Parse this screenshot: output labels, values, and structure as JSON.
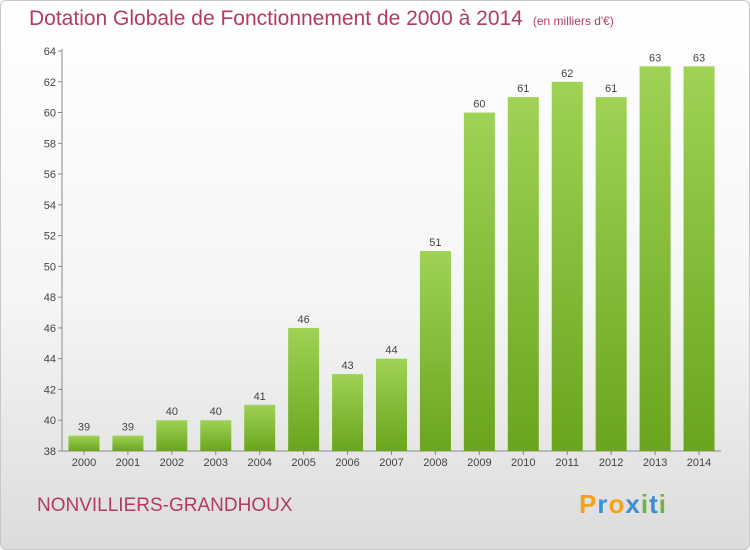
{
  "header": {
    "title": "Dotation Globale de Fonctionnement de 2000 à 2014",
    "unit": "(en milliers d'€)"
  },
  "footer": {
    "commune": "NONVILLIERS-GRANDHOUX",
    "logo_text": "Proxiti"
  },
  "chart_data": {
    "type": "bar",
    "title": "Dotation Globale de Fonctionnement de 2000 à 2014",
    "subtitle": "(en milliers d'€)",
    "xlabel": "",
    "ylabel": "",
    "categories": [
      "2000",
      "2001",
      "2002",
      "2003",
      "2004",
      "2005",
      "2006",
      "2007",
      "2008",
      "2009",
      "2010",
      "2011",
      "2012",
      "2013",
      "2014"
    ],
    "values": [
      39,
      39,
      40,
      40,
      41,
      46,
      43,
      44,
      51,
      60,
      61,
      62,
      61,
      63,
      63
    ],
    "ylim": [
      38,
      64
    ],
    "yticks": [
      38,
      40,
      42,
      44,
      46,
      48,
      50,
      52,
      54,
      56,
      58,
      60,
      62,
      64
    ],
    "grid": false,
    "bar_color_top": "#9fd255",
    "bar_color_bottom": "#6aa51d"
  }
}
